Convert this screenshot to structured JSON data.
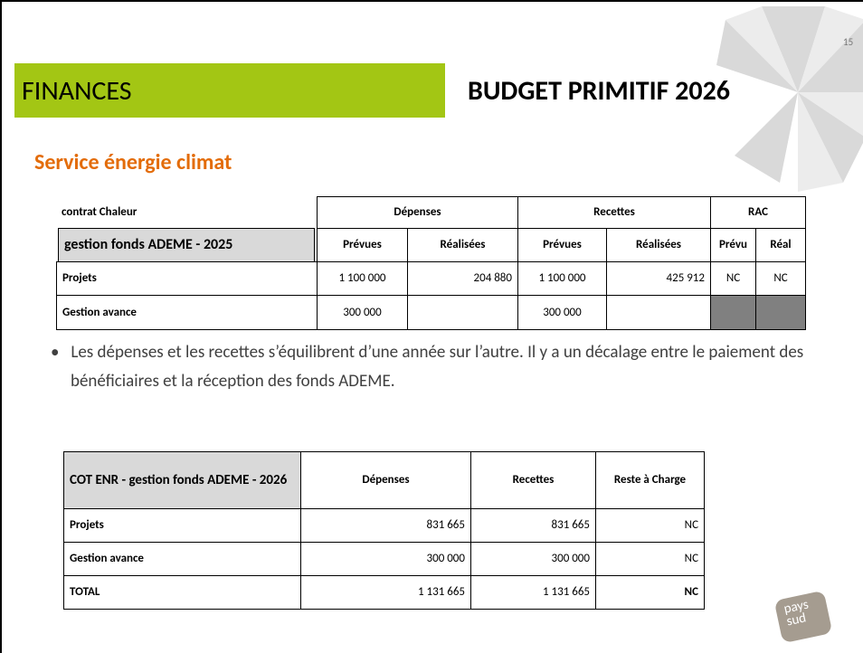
{
  "page_number": "15",
  "header": {
    "section": "FINANCES",
    "title": "BUDGET PRIMITIF 2026"
  },
  "subtitle": "Service énergie climat",
  "table1": {
    "caption": "contrat Chaleur",
    "groups": [
      "Dépenses",
      "Recettes",
      "RAC"
    ],
    "row_header": "gestion fonds ADEME - 2025",
    "columns": [
      "Prévues",
      "Réalisées",
      "Prévues",
      "Réalisées",
      "Prévu",
      "Réal"
    ],
    "rows": [
      [
        "Projets",
        "1 100 000",
        "204 880",
        "1 100 000",
        "425 912",
        "NC",
        "NC"
      ],
      [
        "Gestion avance",
        "300 000",
        null,
        "300 000",
        null,
        null,
        null
      ]
    ]
  },
  "bullets": [
    "Les dépenses et les recettes s’équilibrent d’une année sur l’autre. Il y a un décalage entre le paiement des bénéficiaires et la réception des fonds ADEME."
  ],
  "table2": {
    "header": [
      "COT ENR - gestion fonds ADEME - 2026",
      "Dépenses",
      "Recettes",
      "Reste à Charge"
    ],
    "rows": [
      [
        "Projets",
        "831 665",
        "831 665",
        "NC"
      ],
      [
        "Gestion avance",
        "300 000",
        "300 000",
        "NC"
      ],
      [
        "TOTAL",
        "1 131 665",
        "1 131 665",
        "NC"
      ]
    ]
  },
  "logo": {
    "line1": "pays",
    "line2": "sud"
  }
}
